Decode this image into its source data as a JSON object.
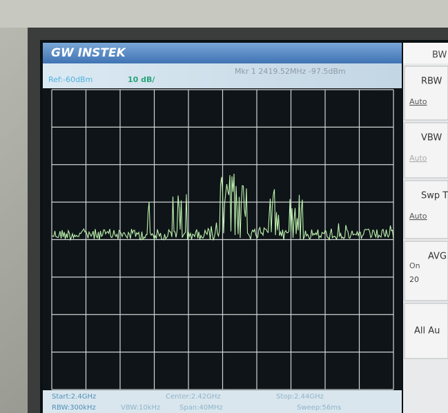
{
  "header": {
    "logo": "GW INSTEK"
  },
  "status": {
    "ref": "Ref:-60dBm",
    "scale": "10 dB/",
    "marker": "Mkr 1 2419.52MHz -97.5dBm"
  },
  "footer": {
    "start": "Start:2.4GHz",
    "center": "Center:2.42GHz",
    "stop": "Stop:2.44GHz",
    "rbw": "RBW:300kHz",
    "vbw": "VBW:10kHz",
    "span": "Span:40MHz",
    "sweep": "Sweep:56ms"
  },
  "menu": {
    "title": "BW",
    "items": [
      {
        "label": "RBW",
        "value": "Auto"
      },
      {
        "label": "VBW",
        "value": "Auto"
      },
      {
        "label": "Swp T",
        "value": "Auto"
      },
      {
        "label": "AVG",
        "value": "On",
        "extra": "20"
      },
      {
        "label": "All Au"
      }
    ]
  }
}
